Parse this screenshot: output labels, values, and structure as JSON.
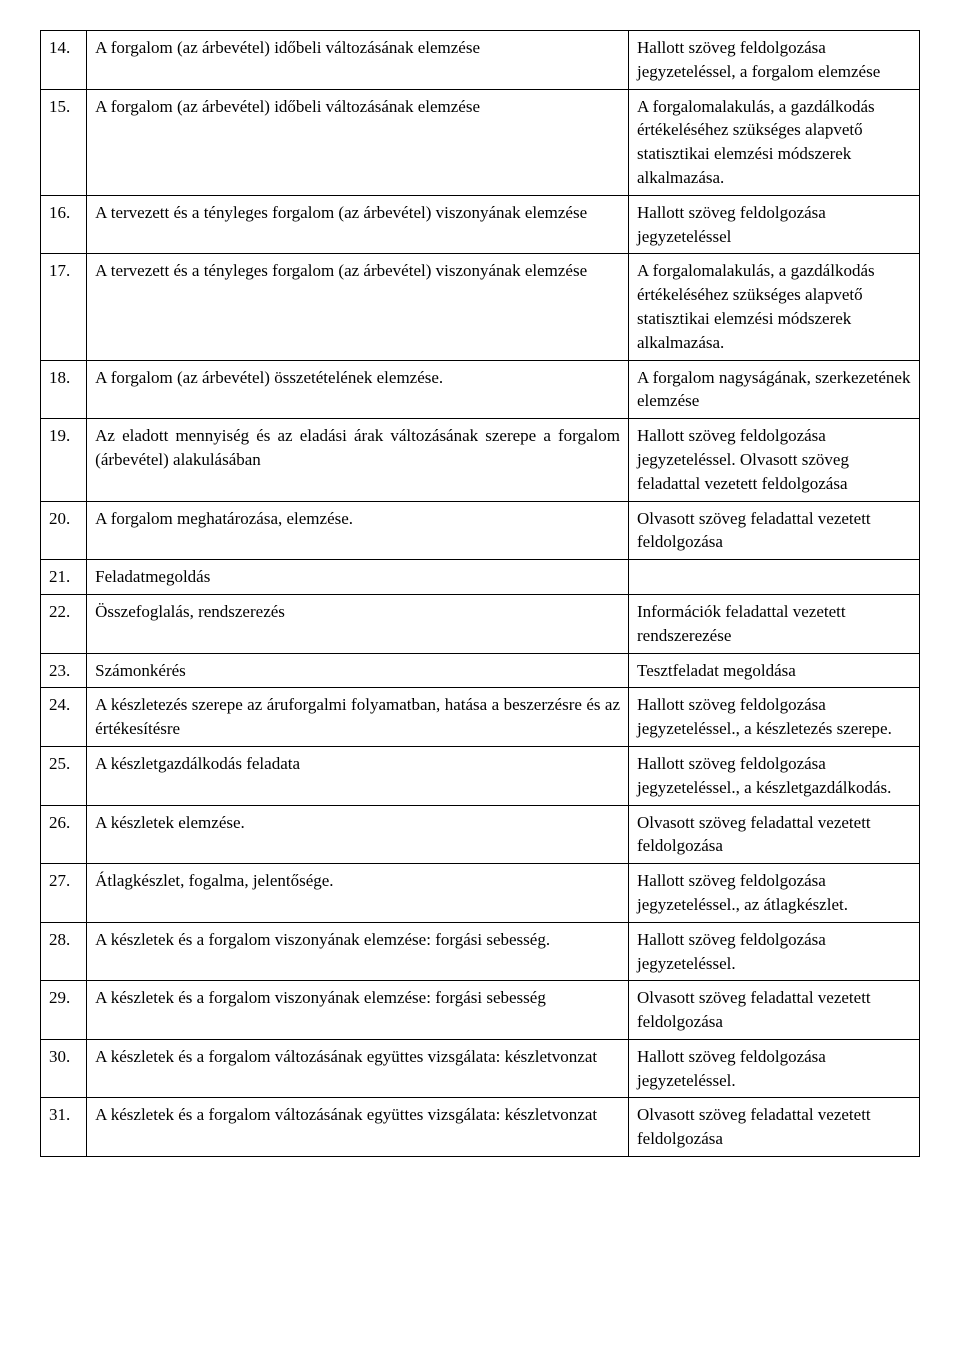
{
  "table": {
    "columns": {
      "num_width": 46,
      "topic_width": 540,
      "desc_width": 290
    },
    "rows": [
      {
        "num": "14.",
        "topic": "A forgalom (az árbevétel) időbeli változásának elemzése",
        "topic_justify": true,
        "desc": "Hallott szöveg feldolgozása jegyzeteléssel, a forgalom elemzése"
      },
      {
        "num": "15.",
        "topic": "A forgalom (az árbevétel) időbeli változásának elemzése",
        "topic_justify": true,
        "desc": "A forgalomalakulás, a gazdálkodás értékeléséhez szükséges alapvető statisztikai elemzési módszerek alkalmazása.",
        "desc_justify": true
      },
      {
        "num": "16.",
        "topic": "A tervezett és a tényleges forgalom (az árbevétel) viszonyának elemzése",
        "topic_justify": true,
        "desc": "Hallott szöveg feldolgozása jegyzeteléssel"
      },
      {
        "num": "17.",
        "topic": "A tervezett és a tényleges forgalom (az árbevétel) viszonyának elemzése",
        "topic_justify": true,
        "desc": "A forgalomalakulás, a gazdálkodás értékeléséhez szükséges alapvető statisztikai elemzési módszerek alkalmazása."
      },
      {
        "num": "18.",
        "topic": "A forgalom (az árbevétel) összetételének elemzése.",
        "topic_justify": false,
        "desc": "A forgalom nagyságának, szerkezetének elemzése"
      },
      {
        "num": "19.",
        "topic": "Az eladott mennyiség és az eladási árak változásának szerepe a forgalom (árbevétel) alakulásában",
        "topic_justify": true,
        "desc": "Hallott szöveg feldolgozása jegyzeteléssel. Olvasott szöveg feladattal vezetett feldolgozása"
      },
      {
        "num": "20.",
        "topic": "A forgalom meghatározása, elemzése.",
        "topic_justify": false,
        "desc": "Olvasott szöveg feladattal vezetett feldolgozása"
      },
      {
        "num": "21.",
        "topic": "Feladatmegoldás",
        "topic_justify": false,
        "desc": ""
      },
      {
        "num": "22.",
        "topic": "Összefoglalás, rendszerezés",
        "topic_justify": false,
        "desc": "Információk feladattal vezetett rendszerezése"
      },
      {
        "num": "23.",
        "topic": "Számonkérés",
        "topic_justify": false,
        "desc": "Tesztfeladat megoldása"
      },
      {
        "num": "24.",
        "topic": "A készletezés szerepe az áruforgalmi folyamatban, hatása a beszerzésre és az értékesítésre",
        "topic_justify": true,
        "desc": "Hallott szöveg feldolgozása jegyzeteléssel., a készletezés szerepe."
      },
      {
        "num": "25.",
        "topic": "A készletgazdálkodás feladata",
        "topic_justify": false,
        "desc": "Hallott szöveg feldolgozása jegyzeteléssel., a készletgazdálkodás."
      },
      {
        "num": "26.",
        "topic": "A készletek elemzése.",
        "topic_justify": false,
        "desc": "Olvasott szöveg feladattal vezetett feldolgozása"
      },
      {
        "num": "27.",
        "topic": "Átlagkészlet, fogalma, jelentősége.",
        "topic_justify": false,
        "desc": "Hallott szöveg feldolgozása jegyzeteléssel., az átlagkészlet."
      },
      {
        "num": "28.",
        "topic": "A készletek és a forgalom viszonyának elemzése: forgási sebesség.",
        "topic_justify": true,
        "desc": "Hallott szöveg feldolgozása jegyzeteléssel."
      },
      {
        "num": "29.",
        "topic": "A készletek és a forgalom viszonyának elemzése: forgási sebesség",
        "topic_justify": true,
        "desc": "Olvasott szöveg feladattal vezetett feldolgozása"
      },
      {
        "num": "30.",
        "topic": "A készletek és a forgalom változásának együttes vizsgálata: készletvonzat",
        "topic_justify": true,
        "desc": "Hallott szöveg feldolgozása jegyzeteléssel."
      },
      {
        "num": "31.",
        "topic": "A készletek és a forgalom változásának együttes vizsgálata: készletvonzat",
        "topic_justify": true,
        "desc": "Olvasott szöveg feladattal vezetett feldolgozása"
      }
    ]
  }
}
